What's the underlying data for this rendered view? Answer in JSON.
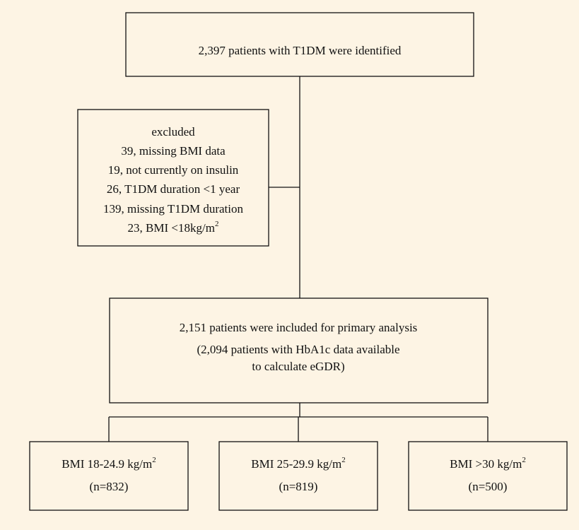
{
  "top_box": {
    "text": "2,397 patients with T1DM were identified"
  },
  "excluded_box": {
    "title": "excluded",
    "lines": [
      {
        "text": "39, missing BMI data"
      },
      {
        "text": "19, not currently on insulin"
      },
      {
        "text": "26, T1DM duration <1 year"
      },
      {
        "text": "139, missing T1DM duration"
      },
      {
        "text": "23, BMI <18kg/m",
        "sup": "2"
      }
    ]
  },
  "included_box": {
    "lines": [
      "2,151 patients were included for primary analysis",
      "(2,094 patients with HbA1c data available",
      "to calculate eGDR)"
    ]
  },
  "groups": [
    {
      "label": "BMI 18-24.9 kg/m",
      "sup": "2",
      "n": "(n=832)"
    },
    {
      "label": "BMI 25-29.9 kg/m",
      "sup": "2",
      "n": "(n=819)"
    },
    {
      "label": "BMI >30 kg/m",
      "sup": "2",
      "n": "(n=500)"
    }
  ]
}
